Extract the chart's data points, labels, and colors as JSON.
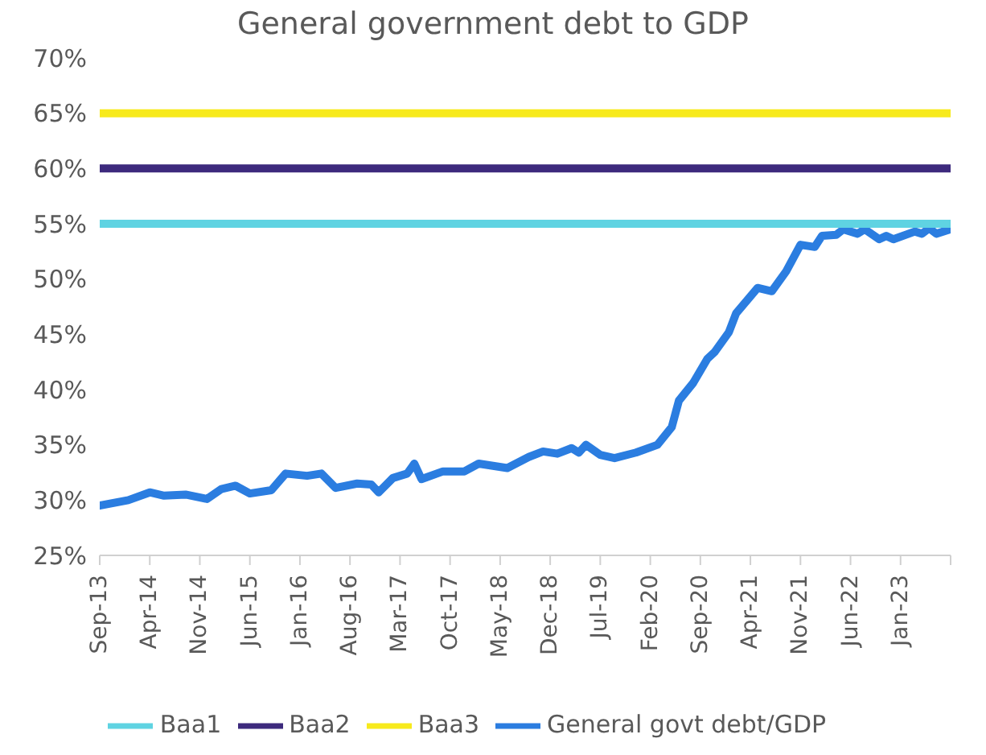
{
  "chart_data": {
    "type": "line",
    "title": "General government debt to GDP",
    "series": [
      {
        "name": "General govt debt/GDP",
        "color": "#2b7de0",
        "x": [
          "2013-09",
          "2014-01",
          "2014-04",
          "2014-06",
          "2014-09",
          "2014-12",
          "2015-02",
          "2015-04",
          "2015-06",
          "2015-09",
          "2015-11",
          "2016-02",
          "2016-04",
          "2016-06",
          "2016-09",
          "2016-11",
          "2016-12",
          "2017-02",
          "2017-04",
          "2017-05",
          "2017-06",
          "2017-09",
          "2017-12",
          "2018-02",
          "2018-04",
          "2018-06",
          "2018-09",
          "2018-11",
          "2019-01",
          "2019-03",
          "2019-04",
          "2019-05",
          "2019-07",
          "2019-09",
          "2019-12",
          "2020-03",
          "2020-05",
          "2020-06",
          "2020-08",
          "2020-10",
          "2020-11",
          "2021-01",
          "2021-02",
          "2021-05",
          "2021-07",
          "2021-09",
          "2021-11",
          "2022-01",
          "2022-02",
          "2022-04",
          "2022-05",
          "2022-07",
          "2022-08",
          "2022-10",
          "2022-11",
          "2022-12",
          "2023-03",
          "2023-04",
          "2023-05",
          "2023-06",
          "2023-08"
        ],
        "values": [
          29.5,
          30.0,
          30.7,
          30.4,
          30.5,
          30.1,
          31.0,
          31.3,
          30.6,
          30.9,
          32.4,
          32.2,
          32.4,
          31.1,
          31.5,
          31.4,
          30.7,
          32.0,
          32.4,
          33.3,
          31.9,
          32.6,
          32.6,
          33.3,
          33.1,
          32.9,
          33.9,
          34.4,
          34.2,
          34.7,
          34.3,
          35.0,
          34.1,
          33.8,
          34.3,
          35.0,
          36.6,
          39.0,
          40.6,
          42.8,
          43.4,
          45.2,
          46.9,
          49.2,
          48.9,
          50.7,
          53.1,
          52.9,
          53.9,
          54.0,
          54.5,
          54.1,
          54.5,
          53.6,
          53.9,
          53.6,
          54.3,
          54.1,
          54.6,
          54.1,
          54.5
        ]
      },
      {
        "name": "Baa1",
        "color": "#5fd3e2",
        "x": [
          "2013-09",
          "2023-08"
        ],
        "values": [
          55,
          55
        ]
      },
      {
        "name": "Baa2",
        "color": "#3d2a7d",
        "x": [
          "2013-09",
          "2023-08"
        ],
        "values": [
          60,
          60
        ]
      },
      {
        "name": "Baa3",
        "color": "#f7ea1c",
        "x": [
          "2013-09",
          "2023-08"
        ],
        "values": [
          65,
          65
        ]
      }
    ],
    "xlim": [
      "2013-09",
      "2023-08"
    ],
    "xticks": [
      {
        "value": "2013-09",
        "label": "Sep-13"
      },
      {
        "value": "2014-04",
        "label": "Apr-14"
      },
      {
        "value": "2014-11",
        "label": "Nov-14"
      },
      {
        "value": "2015-06",
        "label": "Jun-15"
      },
      {
        "value": "2016-01",
        "label": "Jan-16"
      },
      {
        "value": "2016-08",
        "label": "Aug-16"
      },
      {
        "value": "2017-03",
        "label": "Mar-17"
      },
      {
        "value": "2017-10",
        "label": "Oct-17"
      },
      {
        "value": "2018-05",
        "label": "May-18"
      },
      {
        "value": "2018-12",
        "label": "Dec-18"
      },
      {
        "value": "2019-07",
        "label": "Jul-19"
      },
      {
        "value": "2020-02",
        "label": "Feb-20"
      },
      {
        "value": "2020-09",
        "label": "Sep-20"
      },
      {
        "value": "2021-04",
        "label": "Apr-21"
      },
      {
        "value": "2021-11",
        "label": "Nov-21"
      },
      {
        "value": "2022-06",
        "label": "Jun-22"
      },
      {
        "value": "2023-01",
        "label": "Jan-23"
      },
      {
        "value": "2023-08",
        "label": null
      }
    ],
    "ylim": [
      25,
      70
    ],
    "yticks": [
      {
        "value": 25,
        "label": "25%"
      },
      {
        "value": 30,
        "label": "30%"
      },
      {
        "value": 35,
        "label": "35%"
      },
      {
        "value": 40,
        "label": "40%"
      },
      {
        "value": 45,
        "label": "45%"
      },
      {
        "value": 50,
        "label": "50%"
      },
      {
        "value": 55,
        "label": "55%"
      },
      {
        "value": 60,
        "label": "60%"
      },
      {
        "value": 65,
        "label": "65%"
      },
      {
        "value": 70,
        "label": "70%"
      }
    ],
    "grid": false,
    "legend": "bottom",
    "marker": "none",
    "line_style": "solid"
  }
}
